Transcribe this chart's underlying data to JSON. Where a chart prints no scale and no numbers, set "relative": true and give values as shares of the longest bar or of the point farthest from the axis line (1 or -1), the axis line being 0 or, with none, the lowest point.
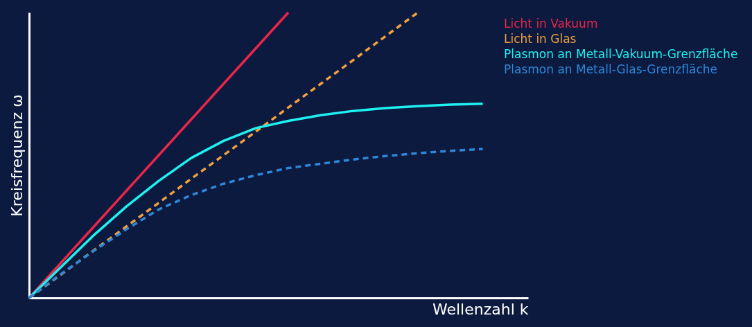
{
  "chart_data": {
    "type": "line",
    "relative": true,
    "xlabel": "Wellenzahl k",
    "ylabel": "Kreisfrequenz ω",
    "categories": [
      null,
      null,
      null,
      null,
      null,
      null,
      null,
      null,
      null,
      null,
      null,
      null,
      null,
      null,
      null
    ],
    "legend": "top right",
    "grid": false,
    "marker": "none",
    "series": [
      {
        "name": "Licht in Vakuum",
        "color": "#e8264a",
        "line_style": "solid",
        "values": [
          0,
          0.125,
          0.25,
          0.375,
          0.5,
          0.625,
          0.75,
          0.875,
          1,
          null,
          null,
          null,
          null,
          null,
          null
        ]
      },
      {
        "name": "Licht in Glas",
        "color": "#f0a040",
        "line_style": "dashed",
        "values": [
          0,
          0.083,
          0.167,
          0.25,
          0.333,
          0.417,
          0.5,
          0.583,
          0.667,
          0.75,
          0.833,
          0.917,
          1,
          null,
          null
        ]
      },
      {
        "name": "Plasmon an Metall-Vakuum-Grenzfläche",
        "color": "#1ff0f0",
        "line_style": "solid",
        "values": [
          0,
          0.11,
          0.22,
          0.32,
          0.41,
          0.49,
          0.55,
          0.595,
          0.62,
          0.64,
          0.655,
          0.665,
          0.672,
          0.677,
          0.68
        ]
      },
      {
        "name": "Plasmon an Metall-Glas-Grenzfläche",
        "color": "#2f86d8",
        "line_style": "dashed",
        "values": [
          0,
          0.085,
          0.165,
          0.24,
          0.31,
          0.36,
          0.4,
          0.43,
          0.455,
          0.47,
          0.485,
          0.497,
          0.507,
          0.515,
          0.522
        ]
      }
    ]
  }
}
